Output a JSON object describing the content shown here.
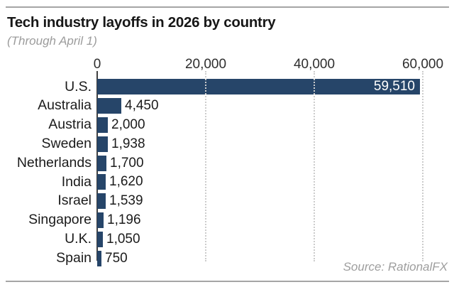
{
  "chart_data": {
    "type": "bar",
    "orientation": "horizontal",
    "title": "Tech industry layoffs in 2026 by country",
    "subtitle": "(Through April 1)",
    "categories": [
      "U.S.",
      "Australia",
      "Austria",
      "Sweden",
      "Netherlands",
      "India",
      "Israel",
      "Singapore",
      "U.K.",
      "Spain"
    ],
    "values": [
      59510,
      4450,
      2000,
      1938,
      1700,
      1620,
      1539,
      1196,
      1050,
      750
    ],
    "value_labels": [
      "59,510",
      "4,450",
      "2,000",
      "1,938",
      "1,700",
      "1,620",
      "1,539",
      "1,196",
      "1,050",
      "750"
    ],
    "xlim": [
      0,
      60000
    ],
    "x_ticks": [
      0,
      20000,
      40000,
      60000
    ],
    "x_tick_labels": [
      "0",
      "20,000",
      "40,000",
      "60,000"
    ],
    "grid": "vertical-dotted",
    "legend": "none",
    "bar_color": "#264569",
    "value_label_inside_color": "#ffffff",
    "value_label_outside_color": "#1b1b1b"
  },
  "source": "Source: RationalFX",
  "colors": {
    "accent_navy": "#264569",
    "rule_gray": "#a5a5a5",
    "subtitle_gray": "#9c9c9c",
    "grid_gray": "#cccccc",
    "axis_gray": "#404040",
    "background": "#ffffff"
  }
}
